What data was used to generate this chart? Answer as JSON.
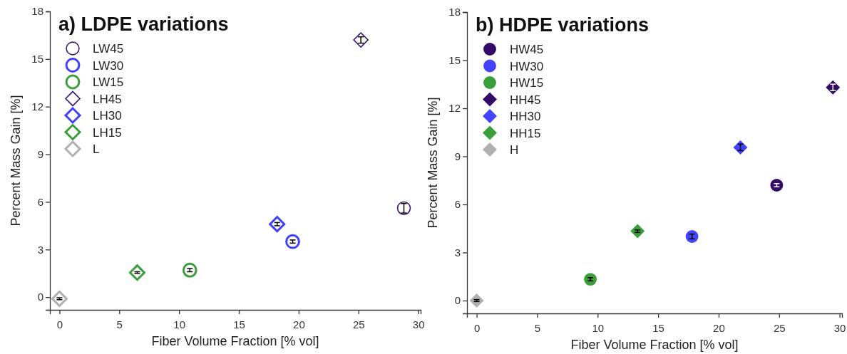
{
  "chart_data": [
    {
      "type": "scatter",
      "title": "a) LDPE variations",
      "xlabel": "Fiber Volume Fraction [% vol]",
      "ylabel": "Percent Mass Gain [%]",
      "xlim": [
        -0.8,
        30.2
      ],
      "ylim": [
        -0.8,
        18
      ],
      "xticks": [
        0,
        5,
        10,
        15,
        20,
        25,
        30
      ],
      "yticks": [
        0,
        3,
        6,
        9,
        12,
        15,
        18
      ],
      "legend": "top left",
      "grid": false,
      "series": [
        {
          "name": "LW45",
          "color": "#3d1a6e",
          "marker": "circle",
          "x": [
            28.8
          ],
          "values": [
            5.6
          ],
          "errors": [
            0.3
          ]
        },
        {
          "name": "LW30",
          "color": "#4040ff",
          "marker": "circle",
          "x": [
            19.5
          ],
          "values": [
            3.5
          ],
          "errors": [
            0.1
          ]
        },
        {
          "name": "LW15",
          "color": "#3a9e3a",
          "marker": "circle",
          "x": [
            10.9
          ],
          "values": [
            1.7
          ],
          "errors": [
            0.1
          ]
        },
        {
          "name": "LH45",
          "color": "#3d1a6e",
          "marker": "diamond",
          "x": [
            25.2
          ],
          "values": [
            16.2
          ],
          "errors": [
            0.2
          ]
        },
        {
          "name": "LH30",
          "color": "#4040ff",
          "marker": "diamond",
          "x": [
            18.2
          ],
          "values": [
            4.6
          ],
          "errors": [
            0.1
          ]
        },
        {
          "name": "LH15",
          "color": "#3a9e3a",
          "marker": "diamond",
          "x": [
            6.5
          ],
          "values": [
            1.55
          ],
          "errors": [
            0.05
          ]
        },
        {
          "name": "L",
          "color": "#b0b0b0",
          "marker": "diamond",
          "x": [
            0
          ],
          "values": [
            -0.1
          ],
          "errors": [
            0.06
          ]
        }
      ]
    },
    {
      "type": "scatter",
      "title": "b) HDPE variations",
      "xlabel": "Fiber Volume Fraction [% vol]",
      "ylabel": "Percent Mass Gain [%]",
      "xlim": [
        -0.8,
        30.2
      ],
      "ylim": [
        -0.8,
        18
      ],
      "xticks": [
        0,
        5,
        10,
        15,
        20,
        25,
        30
      ],
      "yticks": [
        0,
        3,
        6,
        9,
        12,
        15,
        18
      ],
      "legend": "top left",
      "grid": false,
      "series": [
        {
          "name": "HW45",
          "color": "#330a66",
          "marker": "circle",
          "x": [
            24.8
          ],
          "values": [
            7.2
          ],
          "errors": [
            0.1
          ]
        },
        {
          "name": "HW30",
          "color": "#4444ff",
          "marker": "circle",
          "x": [
            17.8
          ],
          "values": [
            4.0
          ],
          "errors": [
            0.15
          ]
        },
        {
          "name": "HW15",
          "color": "#3a9e3a",
          "marker": "circle",
          "x": [
            9.4
          ],
          "values": [
            1.33
          ],
          "errors": [
            0.1
          ]
        },
        {
          "name": "HH45",
          "color": "#330a66",
          "marker": "diamond",
          "x": [
            29.45
          ],
          "values": [
            13.3
          ],
          "errors": [
            0.2
          ]
        },
        {
          "name": "HH30",
          "color": "#4444ff",
          "marker": "diamond",
          "x": [
            21.8
          ],
          "values": [
            9.56
          ],
          "errors": [
            0.2
          ]
        },
        {
          "name": "HH15",
          "color": "#3a9e3a",
          "marker": "diamond",
          "x": [
            13.3
          ],
          "values": [
            4.33
          ],
          "errors": [
            0.08
          ]
        },
        {
          "name": "H",
          "color": "#b0b0b0",
          "marker": "diamond",
          "x": [
            0
          ],
          "values": [
            0
          ],
          "errors": [
            0.06
          ]
        }
      ]
    }
  ]
}
